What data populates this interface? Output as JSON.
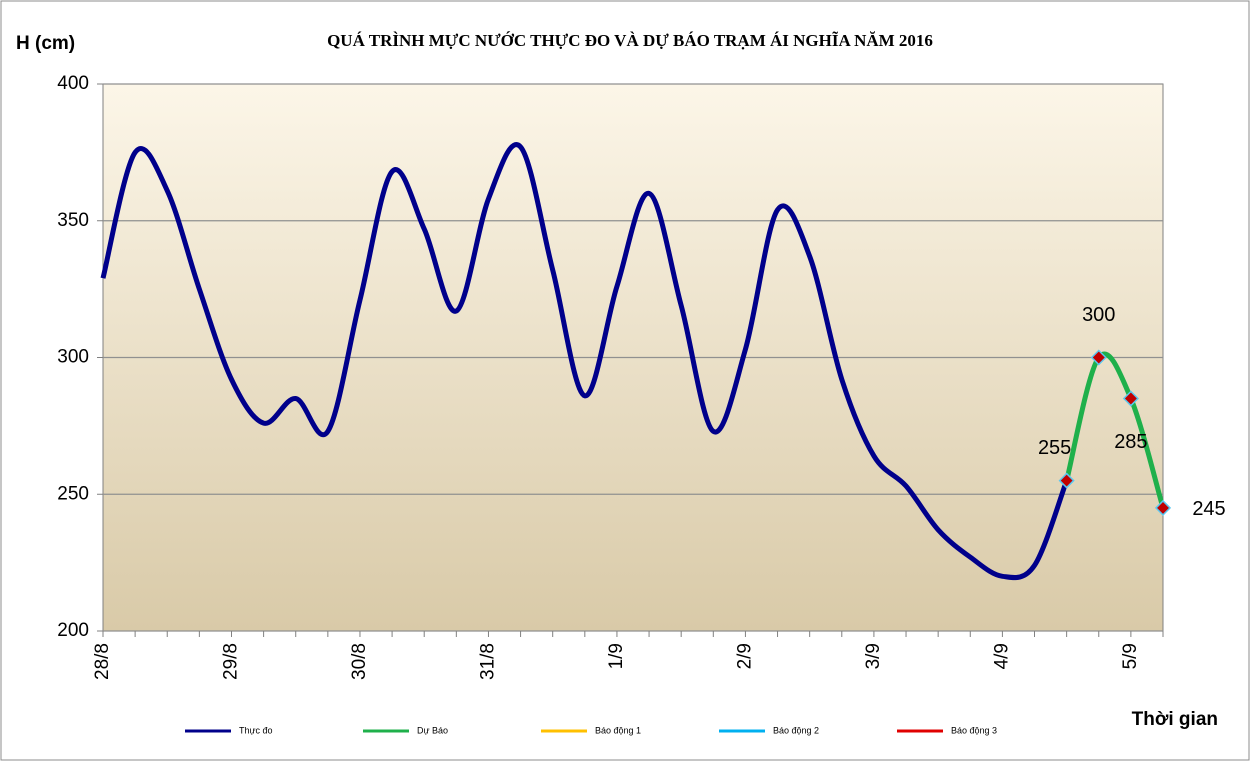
{
  "chart_data": {
    "type": "line",
    "title": "QUÁ TRÌNH MỰC NƯỚC THỰC ĐO VÀ DỰ BÁO TRẠM ÁI NGHĨA NĂM 2016",
    "y_label": "H (cm)",
    "x_label": "Thời gian",
    "categories": [
      "28/8",
      null,
      null,
      null,
      "29/8",
      null,
      null,
      null,
      "30/8",
      null,
      null,
      null,
      "31/8",
      null,
      null,
      null,
      "1/9",
      null,
      null,
      null,
      "2/9",
      null,
      null,
      null,
      "3/9",
      null,
      null,
      null,
      "4/9",
      null,
      null,
      null,
      "5/9",
      null
    ],
    "series": [
      {
        "name": "Thực đo",
        "color": "#00008b",
        "values": [
          329,
          375,
          361,
          325,
          292,
          276,
          285,
          273,
          321,
          368,
          347,
          317,
          358,
          377,
          332,
          286,
          326,
          360,
          319,
          273,
          303,
          354,
          337,
          292,
          264,
          253,
          237,
          227,
          220,
          224,
          255,
          null,
          null,
          null
        ]
      },
      {
        "name": "Dự Báo",
        "color": "#1fb04b",
        "marker": true,
        "data_labels": true,
        "values": [
          null,
          null,
          null,
          null,
          null,
          null,
          null,
          null,
          null,
          null,
          null,
          null,
          null,
          null,
          null,
          null,
          null,
          null,
          null,
          null,
          null,
          null,
          null,
          null,
          null,
          null,
          null,
          null,
          null,
          null,
          255,
          300,
          285,
          245
        ]
      },
      {
        "name": "Báo động 1",
        "color": "#ffc000",
        "values": [
          null,
          null,
          null,
          null,
          null,
          null,
          null,
          null,
          null,
          null,
          null,
          null,
          null,
          null,
          null,
          null,
          null,
          null,
          null,
          null,
          null,
          null,
          null,
          null,
          null,
          null,
          null,
          null,
          null,
          null,
          null,
          null,
          null,
          null
        ]
      },
      {
        "name": "Báo động 2",
        "color": "#00b0f0",
        "values": [
          null,
          null,
          null,
          null,
          null,
          null,
          null,
          null,
          null,
          null,
          null,
          null,
          null,
          null,
          null,
          null,
          null,
          null,
          null,
          null,
          null,
          null,
          null,
          null,
          null,
          null,
          null,
          null,
          null,
          null,
          null,
          null,
          null,
          null
        ]
      },
      {
        "name": "Báo động 3",
        "color": "#e00000",
        "values": [
          null,
          null,
          null,
          null,
          null,
          null,
          null,
          null,
          null,
          null,
          null,
          null,
          null,
          null,
          null,
          null,
          null,
          null,
          null,
          null,
          null,
          null,
          null,
          null,
          null,
          null,
          null,
          null,
          null,
          null,
          null,
          null,
          null,
          null
        ]
      }
    ],
    "ylim": [
      200,
      400
    ],
    "yticks": [
      200,
      250,
      300,
      350,
      400
    ],
    "grid": true,
    "legend": "bottom"
  }
}
